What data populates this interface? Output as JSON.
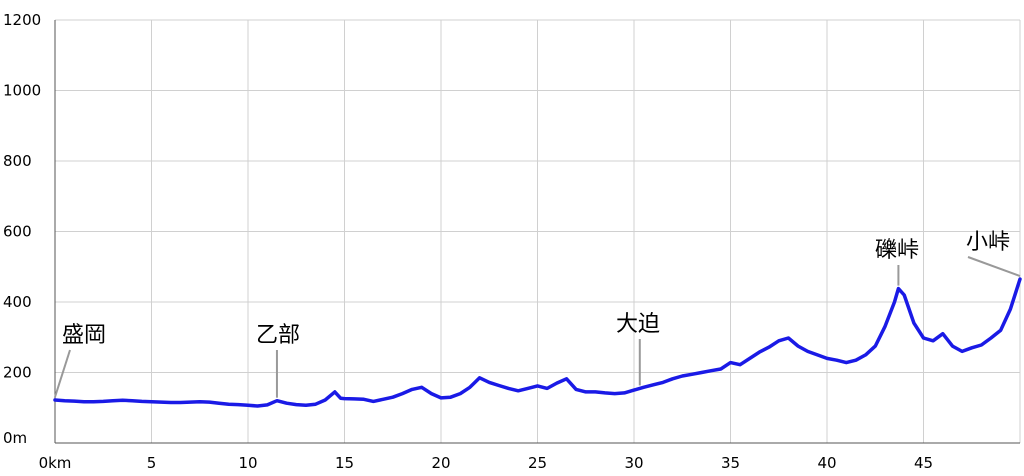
{
  "chart_data": {
    "type": "line",
    "title": "",
    "xlabel": "",
    "ylabel": "",
    "xlim": [
      0,
      50
    ],
    "ylim": [
      0,
      1200
    ],
    "grid": true,
    "x_ticks": [
      {
        "value": 0,
        "label": "0km"
      },
      {
        "value": 5,
        "label": "5"
      },
      {
        "value": 10,
        "label": "10"
      },
      {
        "value": 15,
        "label": "15"
      },
      {
        "value": 20,
        "label": "20"
      },
      {
        "value": 25,
        "label": "25"
      },
      {
        "value": 30,
        "label": "30"
      },
      {
        "value": 35,
        "label": "35"
      },
      {
        "value": 40,
        "label": "40"
      },
      {
        "value": 45,
        "label": "45"
      }
    ],
    "y_ticks": [
      {
        "value": 0,
        "label": "0m"
      },
      {
        "value": 200,
        "label": "200"
      },
      {
        "value": 400,
        "label": "400"
      },
      {
        "value": 600,
        "label": "600"
      },
      {
        "value": 800,
        "label": "800"
      },
      {
        "value": 1000,
        "label": "1000"
      },
      {
        "value": 1200,
        "label": "1200"
      }
    ],
    "line_color": "#1a1ae6",
    "series": [
      {
        "x": [
          0,
          0.5,
          1,
          1.5,
          2,
          2.5,
          3,
          3.5,
          4,
          4.5,
          5,
          5.5,
          6,
          6.5,
          7,
          7.5,
          8,
          8.5,
          9,
          9.5,
          10,
          10.5,
          11,
          11.5,
          12,
          12.5,
          13,
          13.5,
          14,
          14.5,
          14.8,
          15,
          15.5,
          16,
          16.5,
          17,
          17.5,
          18,
          18.5,
          19,
          19.5,
          20,
          20.5,
          21,
          21.5,
          22,
          22.5,
          23,
          23.5,
          24,
          24.5,
          25,
          25.5,
          26,
          26.5,
          27,
          27.5,
          28,
          28.5,
          29,
          29.5,
          30,
          30.5,
          31,
          31.5,
          32,
          32.5,
          33,
          33.5,
          34,
          34.5,
          35,
          35.5,
          36,
          36.5,
          37,
          37.5,
          38,
          38.5,
          39,
          39.5,
          40,
          40.5,
          41,
          41.5,
          42,
          42.5,
          43,
          43.5,
          43.7,
          44,
          44.5,
          45,
          45.5,
          46,
          46.5,
          47,
          47.5,
          48,
          48.5,
          49,
          49.5,
          50
        ],
        "y": [
          122,
          120,
          119,
          117,
          117,
          118,
          120,
          121,
          120,
          118,
          117,
          116,
          115,
          115,
          116,
          117,
          116,
          113,
          110,
          109,
          107,
          105,
          108,
          120,
          113,
          109,
          107,
          110,
          122,
          145,
          127,
          126,
          125,
          124,
          118,
          124,
          130,
          140,
          152,
          158,
          140,
          128,
          130,
          140,
          158,
          185,
          172,
          163,
          155,
          148,
          155,
          162,
          155,
          170,
          182,
          152,
          145,
          145,
          142,
          140,
          142,
          150,
          158,
          165,
          172,
          182,
          190,
          195,
          200,
          205,
          210,
          228,
          222,
          240,
          258,
          272,
          290,
          298,
          275,
          260,
          250,
          240,
          235,
          228,
          235,
          250,
          275,
          330,
          400,
          438,
          420,
          340,
          298,
          290,
          310,
          275,
          260,
          270,
          278,
          298,
          320,
          380,
          465
        ]
      }
    ],
    "annotations": [
      {
        "label": "盛岡",
        "x": 0
      },
      {
        "label": "乙部",
        "x": 11.5
      },
      {
        "label": "大迫",
        "x": 30.3
      },
      {
        "label": "礫峠",
        "x": 43.7
      },
      {
        "label": "小峠",
        "x": 50
      }
    ]
  }
}
